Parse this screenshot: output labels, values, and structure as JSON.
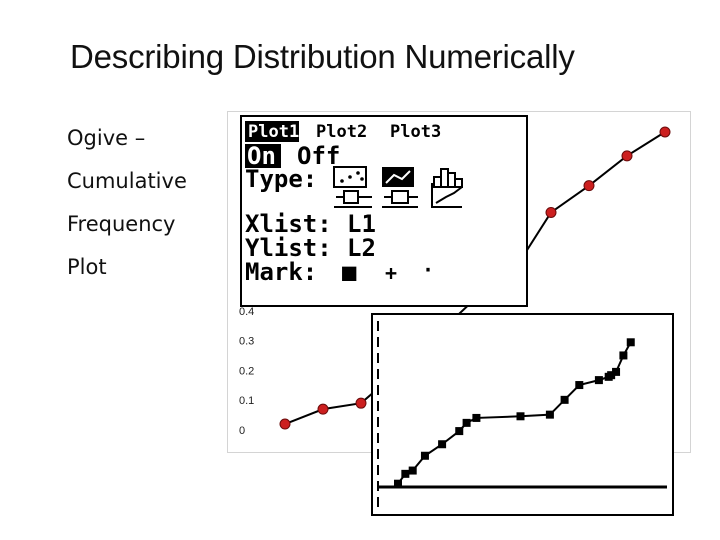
{
  "slide": {
    "title": "Describing Distribution Numerically",
    "bullets": [
      "Ogive –",
      "Cumulative",
      "Frequency",
      "Plot"
    ]
  },
  "calculator_menu": {
    "tabs": [
      "Plot1",
      "Plot2",
      "Plot3"
    ],
    "active_tab": "Plot1",
    "status_on": "On",
    "status_off": "Off",
    "type_label": "Type:",
    "xlist_label": "Xlist:",
    "xlist_value": "L1",
    "ylist_label": "Ylist:",
    "ylist_value": "L2",
    "mark_label": "Mark:",
    "mark_options": [
      "■",
      "+",
      "·"
    ]
  },
  "chart_data": [
    {
      "type": "line",
      "yticks": [
        "0",
        "0.1",
        "0.2",
        "0.3",
        "0.4"
      ],
      "ylim": [
        0,
        1
      ],
      "x": [
        1,
        2,
        3,
        4,
        5,
        6,
        7,
        8,
        9,
        10,
        11
      ],
      "values": [
        0.02,
        0.07,
        0.09,
        0.2,
        0.32,
        0.44,
        0.53,
        0.73,
        0.82,
        0.92,
        1.0
      ],
      "marker_color": "#cc1f1f",
      "line_color": "#000000",
      "grid": false
    },
    {
      "type": "line",
      "x": [
        0,
        0.03,
        0.06,
        0.11,
        0.18,
        0.25,
        0.28,
        0.32,
        0.5,
        0.62,
        0.68,
        0.74,
        0.82,
        0.86,
        0.87,
        0.89,
        0.92,
        0.95
      ],
      "values": [
        0.02,
        0.08,
        0.1,
        0.19,
        0.26,
        0.34,
        0.39,
        0.42,
        0.43,
        0.44,
        0.53,
        0.62,
        0.65,
        0.67,
        0.68,
        0.7,
        0.8,
        0.88
      ],
      "marker_color": "#000000",
      "line_color": "#000000",
      "grid": false
    }
  ]
}
